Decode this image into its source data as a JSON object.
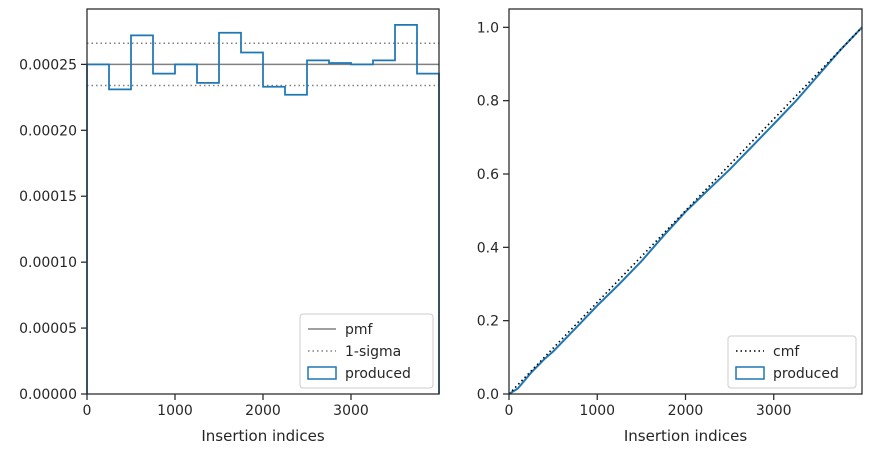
{
  "chart_data": [
    {
      "type": "histogram",
      "xlabel": "Insertion indices",
      "ylabel": "",
      "xlim": [
        0,
        4000
      ],
      "ylim": [
        0,
        0.000292
      ],
      "x_ticks": [
        0,
        1000,
        2000,
        3000
      ],
      "x_tick_labels": [
        "0",
        "1000",
        "2000",
        "3000"
      ],
      "y_ticks": [
        0,
        5e-05,
        0.0001,
        0.00015,
        0.0002,
        0.00025
      ],
      "y_tick_labels": [
        "0.00000",
        "0.00005",
        "0.00010",
        "0.00015",
        "0.00020",
        "0.00025"
      ],
      "bin_edges": [
        0,
        250,
        500,
        750,
        1000,
        1250,
        1500,
        1750,
        2000,
        2250,
        2500,
        2750,
        3000,
        3250,
        3500,
        3750,
        4000
      ],
      "series": [
        {
          "name": "produced",
          "values": [
            0.00025,
            0.000231,
            0.000272,
            0.000243,
            0.00025,
            0.000236,
            0.000274,
            0.000259,
            0.000233,
            0.000227,
            0.000253,
            0.000251,
            0.00025,
            0.000253,
            0.00028,
            0.000243
          ],
          "color": "#1f77b4"
        }
      ],
      "reference_lines": [
        {
          "name": "pmf",
          "y": 0.00025,
          "style": "solid",
          "color": "#808080"
        },
        {
          "name": "1-sigma",
          "y": 0.000266,
          "style": "dotted",
          "color": "#808080"
        },
        {
          "name": "1-sigma",
          "y": 0.000234,
          "style": "dotted",
          "color": "#808080"
        }
      ],
      "legend": {
        "placement": "lower-right",
        "entries": [
          {
            "label": "pmf",
            "style": "solid-line",
            "color": "#808080"
          },
          {
            "label": "1-sigma",
            "style": "dotted-line",
            "color": "#808080"
          },
          {
            "label": "produced",
            "style": "box",
            "color": "#1f77b4"
          }
        ]
      },
      "grid": false
    },
    {
      "type": "line",
      "xlabel": "Insertion indices",
      "ylabel": "",
      "xlim": [
        0,
        4000
      ],
      "ylim": [
        0,
        1.05
      ],
      "x_ticks": [
        0,
        1000,
        2000,
        3000
      ],
      "x_tick_labels": [
        "0",
        "1000",
        "2000",
        "3000"
      ],
      "y_ticks": [
        0,
        0.2,
        0.4,
        0.6,
        0.8,
        1.0
      ],
      "y_tick_labels": [
        "0.0",
        "0.2",
        "0.4",
        "0.6",
        "0.8",
        "1.0"
      ],
      "series": [
        {
          "name": "produced",
          "color": "#1f77b4",
          "x": [
            0,
            100,
            250,
            400,
            500,
            750,
            1000,
            1250,
            1500,
            1750,
            2000,
            2250,
            2500,
            2750,
            3000,
            3250,
            3500,
            3750,
            4000
          ],
          "y": [
            0.0,
            0.015,
            0.058,
            0.095,
            0.116,
            0.178,
            0.241,
            0.3,
            0.362,
            0.431,
            0.497,
            0.555,
            0.612,
            0.674,
            0.736,
            0.799,
            0.868,
            0.937,
            1.0
          ]
        },
        {
          "name": "cmf",
          "color": "#000000",
          "style": "dotted",
          "x": [
            0,
            4000
          ],
          "y": [
            0.0,
            1.0
          ]
        }
      ],
      "legend": {
        "placement": "lower-right",
        "entries": [
          {
            "label": "cmf",
            "style": "dotted-line",
            "color": "#000000"
          },
          {
            "label": "produced",
            "style": "box",
            "color": "#1f77b4"
          }
        ]
      },
      "grid": false
    }
  ]
}
